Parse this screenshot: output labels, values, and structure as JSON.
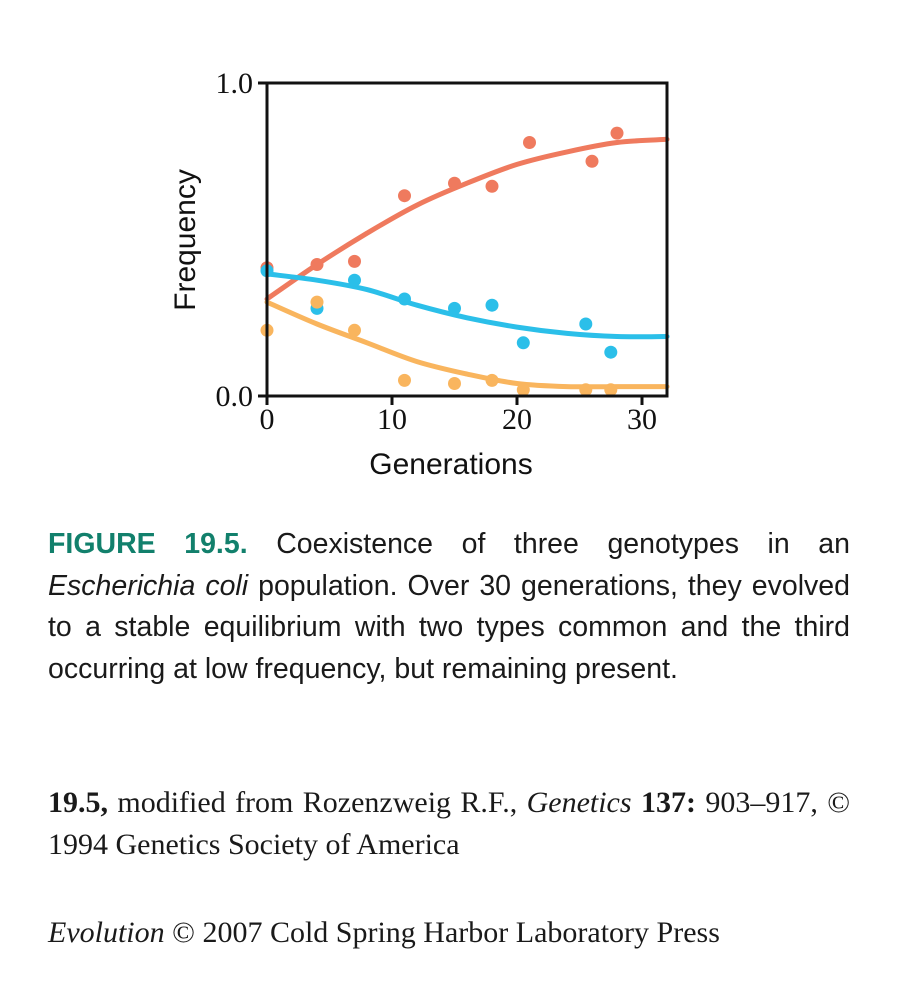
{
  "chart_data": {
    "type": "scatter",
    "xlabel": "Generations",
    "ylabel": "Frequency",
    "xlim": [
      0,
      32
    ],
    "ylim": [
      0,
      1
    ],
    "x_ticks": [
      0,
      10,
      20,
      30
    ],
    "x_tick_labels": [
      "0",
      "10",
      "20",
      "30"
    ],
    "y_ticks": [
      0,
      1
    ],
    "y_tick_labels": [
      "0.0",
      "1.0"
    ],
    "grid": false,
    "series": [
      {
        "color": "#ef7a5e",
        "points": [
          [
            0,
            0.41
          ],
          [
            4,
            0.42
          ],
          [
            7,
            0.43
          ],
          [
            11,
            0.64
          ],
          [
            15,
            0.68
          ],
          [
            18,
            0.67
          ],
          [
            21,
            0.81
          ],
          [
            26,
            0.75
          ],
          [
            28,
            0.84
          ]
        ],
        "fit": [
          [
            0,
            0.31
          ],
          [
            4,
            0.42
          ],
          [
            8,
            0.52
          ],
          [
            12,
            0.61
          ],
          [
            16,
            0.68
          ],
          [
            20,
            0.74
          ],
          [
            24,
            0.78
          ],
          [
            28,
            0.81
          ],
          [
            32,
            0.82
          ]
        ]
      },
      {
        "color": "#2bbfe9",
        "points": [
          [
            0,
            0.4
          ],
          [
            4,
            0.28
          ],
          [
            7,
            0.37
          ],
          [
            11,
            0.31
          ],
          [
            15,
            0.28
          ],
          [
            18,
            0.29
          ],
          [
            20.5,
            0.17
          ],
          [
            25.5,
            0.23
          ],
          [
            27.5,
            0.14
          ]
        ],
        "fit": [
          [
            0,
            0.39
          ],
          [
            4,
            0.37
          ],
          [
            8,
            0.34
          ],
          [
            12,
            0.29
          ],
          [
            16,
            0.25
          ],
          [
            20,
            0.22
          ],
          [
            24,
            0.2
          ],
          [
            28,
            0.19
          ],
          [
            32,
            0.19
          ]
        ]
      },
      {
        "color": "#f9b55e",
        "points": [
          [
            0,
            0.21
          ],
          [
            4,
            0.3
          ],
          [
            7,
            0.21
          ],
          [
            11,
            0.05
          ],
          [
            15,
            0.04
          ],
          [
            18,
            0.05
          ],
          [
            20.5,
            0.02
          ],
          [
            25.5,
            0.02
          ],
          [
            27.5,
            0.02
          ]
        ],
        "fit": [
          [
            0,
            0.3
          ],
          [
            4,
            0.23
          ],
          [
            8,
            0.17
          ],
          [
            12,
            0.11
          ],
          [
            16,
            0.07
          ],
          [
            20,
            0.04
          ],
          [
            24,
            0.03
          ],
          [
            28,
            0.03
          ],
          [
            32,
            0.03
          ]
        ]
      }
    ]
  },
  "caption": {
    "label": "FIGURE 19.5.",
    "text_1": " Coexistence of three genotypes in an ",
    "species": "Escherichia coli",
    "text_2": " population. Over 30 generations, they evolved to a stable equilibrium with two types common and the third occurring at low frequency, but remaining present."
  },
  "credit": {
    "number": "19.5,",
    "text_1": " modified from Rozenzweig R.F., ",
    "journal": "Genetics",
    "volume": " 137:",
    "text_2": " 903–917, © 1994 Genetics Society of America"
  },
  "copyright": {
    "book": "Evolution",
    "text": " © 2007 Cold Spring Harbor Laboratory Press"
  }
}
